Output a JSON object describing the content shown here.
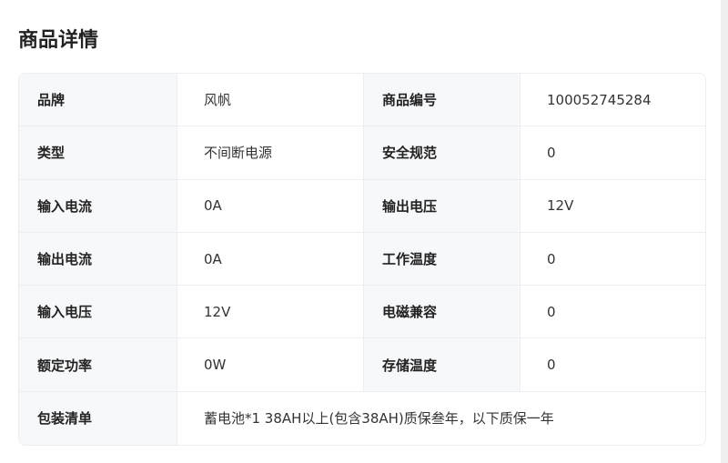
{
  "title": "商品详情",
  "rows": [
    [
      {
        "label": "品牌",
        "value": "风帆"
      },
      {
        "label": "商品编号",
        "value": "100052745284"
      }
    ],
    [
      {
        "label": "类型",
        "value": "不间断电源"
      },
      {
        "label": "安全规范",
        "value": "0"
      }
    ],
    [
      {
        "label": "输入电流",
        "value": "0A"
      },
      {
        "label": "输出电压",
        "value": "12V"
      }
    ],
    [
      {
        "label": "输出电流",
        "value": "0A"
      },
      {
        "label": "工作温度",
        "value": "0"
      }
    ],
    [
      {
        "label": "输入电压",
        "value": "12V"
      },
      {
        "label": "电磁兼容",
        "value": "0"
      }
    ],
    [
      {
        "label": "额定功率",
        "value": "0W"
      },
      {
        "label": "存储温度",
        "value": "0"
      }
    ]
  ],
  "package": {
    "label": "包装清单",
    "value": "蓄电池*1 38AH以上(包含38AH)质保叁年，以下质保一年"
  }
}
